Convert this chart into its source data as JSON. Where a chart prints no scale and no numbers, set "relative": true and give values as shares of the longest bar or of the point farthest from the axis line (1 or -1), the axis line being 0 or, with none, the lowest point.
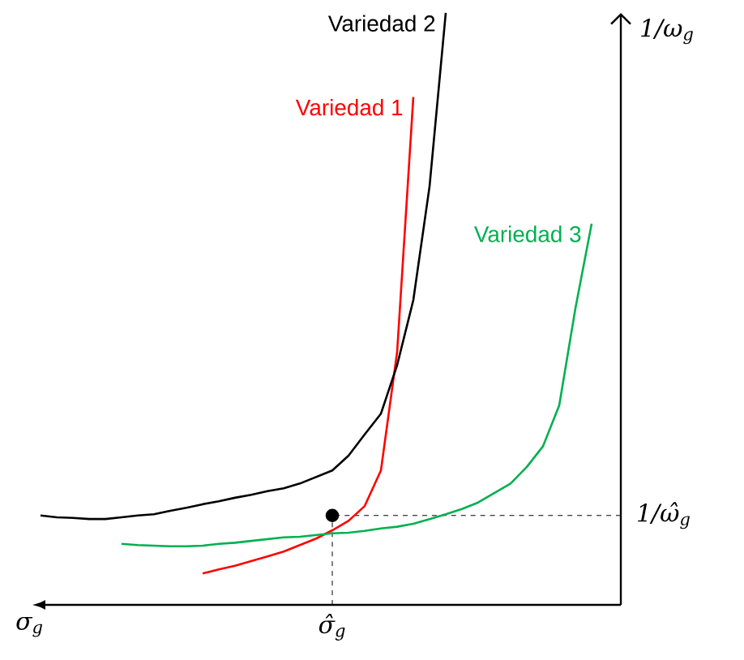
{
  "chart_data": {
    "type": "line",
    "relative": true,
    "xlabel": "σ$_{g}$",
    "ylabel": "1/ω$_{g}$",
    "categories": [
      null,
      null,
      null,
      null,
      null,
      null,
      null,
      null,
      null,
      null,
      null,
      null,
      null,
      null,
      null,
      null,
      null,
      null,
      null,
      null,
      null,
      null,
      null,
      null,
      null,
      null,
      null,
      null,
      null,
      null,
      null,
      null,
      null,
      null,
      null,
      null
    ],
    "series": [
      {
        "name": "Variedad 1",
        "color": "#ff0000",
        "values": [
          null,
          null,
          null,
          null,
          null,
          null,
          null,
          null,
          null,
          null,
          0.053,
          0.06,
          0.066,
          0.074,
          0.082,
          0.09,
          0.101,
          0.112,
          0.126,
          0.142,
          0.167,
          0.227,
          0.427,
          0.858,
          null,
          null,
          null,
          null,
          null,
          null,
          null,
          null,
          null,
          null,
          null,
          null
        ]
      },
      {
        "name": "Variedad 2",
        "color": "#000000",
        "values": [
          0.151,
          0.148,
          0.147,
          0.145,
          0.145,
          0.148,
          0.151,
          0.153,
          0.159,
          0.164,
          0.17,
          0.175,
          0.181,
          0.186,
          0.192,
          0.197,
          0.205,
          0.216,
          0.227,
          0.252,
          0.288,
          0.323,
          0.405,
          0.515,
          0.707,
          1.0,
          null,
          null,
          null,
          null,
          null,
          null,
          null,
          null,
          null,
          null
        ]
      },
      {
        "name": "Variedad 3",
        "color": "#00b050",
        "values": [
          null,
          null,
          null,
          null,
          null,
          0.103,
          0.101,
          0.1,
          0.099,
          0.099,
          0.1,
          0.103,
          0.105,
          0.108,
          0.111,
          0.114,
          0.115,
          0.118,
          0.121,
          0.122,
          0.125,
          0.129,
          0.132,
          0.137,
          0.145,
          0.153,
          0.162,
          0.173,
          0.189,
          0.205,
          0.233,
          0.268,
          0.337,
          0.501,
          0.644,
          null
        ]
      },
      {
        "marker": "circle",
        "color": "#000000",
        "values": [
          null,
          null,
          null,
          null,
          null,
          null,
          null,
          null,
          null,
          null,
          null,
          null,
          null,
          null,
          null,
          null,
          null,
          null,
          0.151,
          null,
          null,
          null,
          null,
          null,
          null,
          null,
          null,
          null,
          null,
          null,
          null,
          null,
          null,
          null,
          null,
          null
        ]
      }
    ],
    "ref_lines": [
      {
        "axis": "y",
        "value": 0.151,
        "label": "1/ω̂$_{g}$",
        "line_style": "dashed"
      }
    ],
    "annotations": [
      "σ̂$_{g}$"
    ]
  }
}
